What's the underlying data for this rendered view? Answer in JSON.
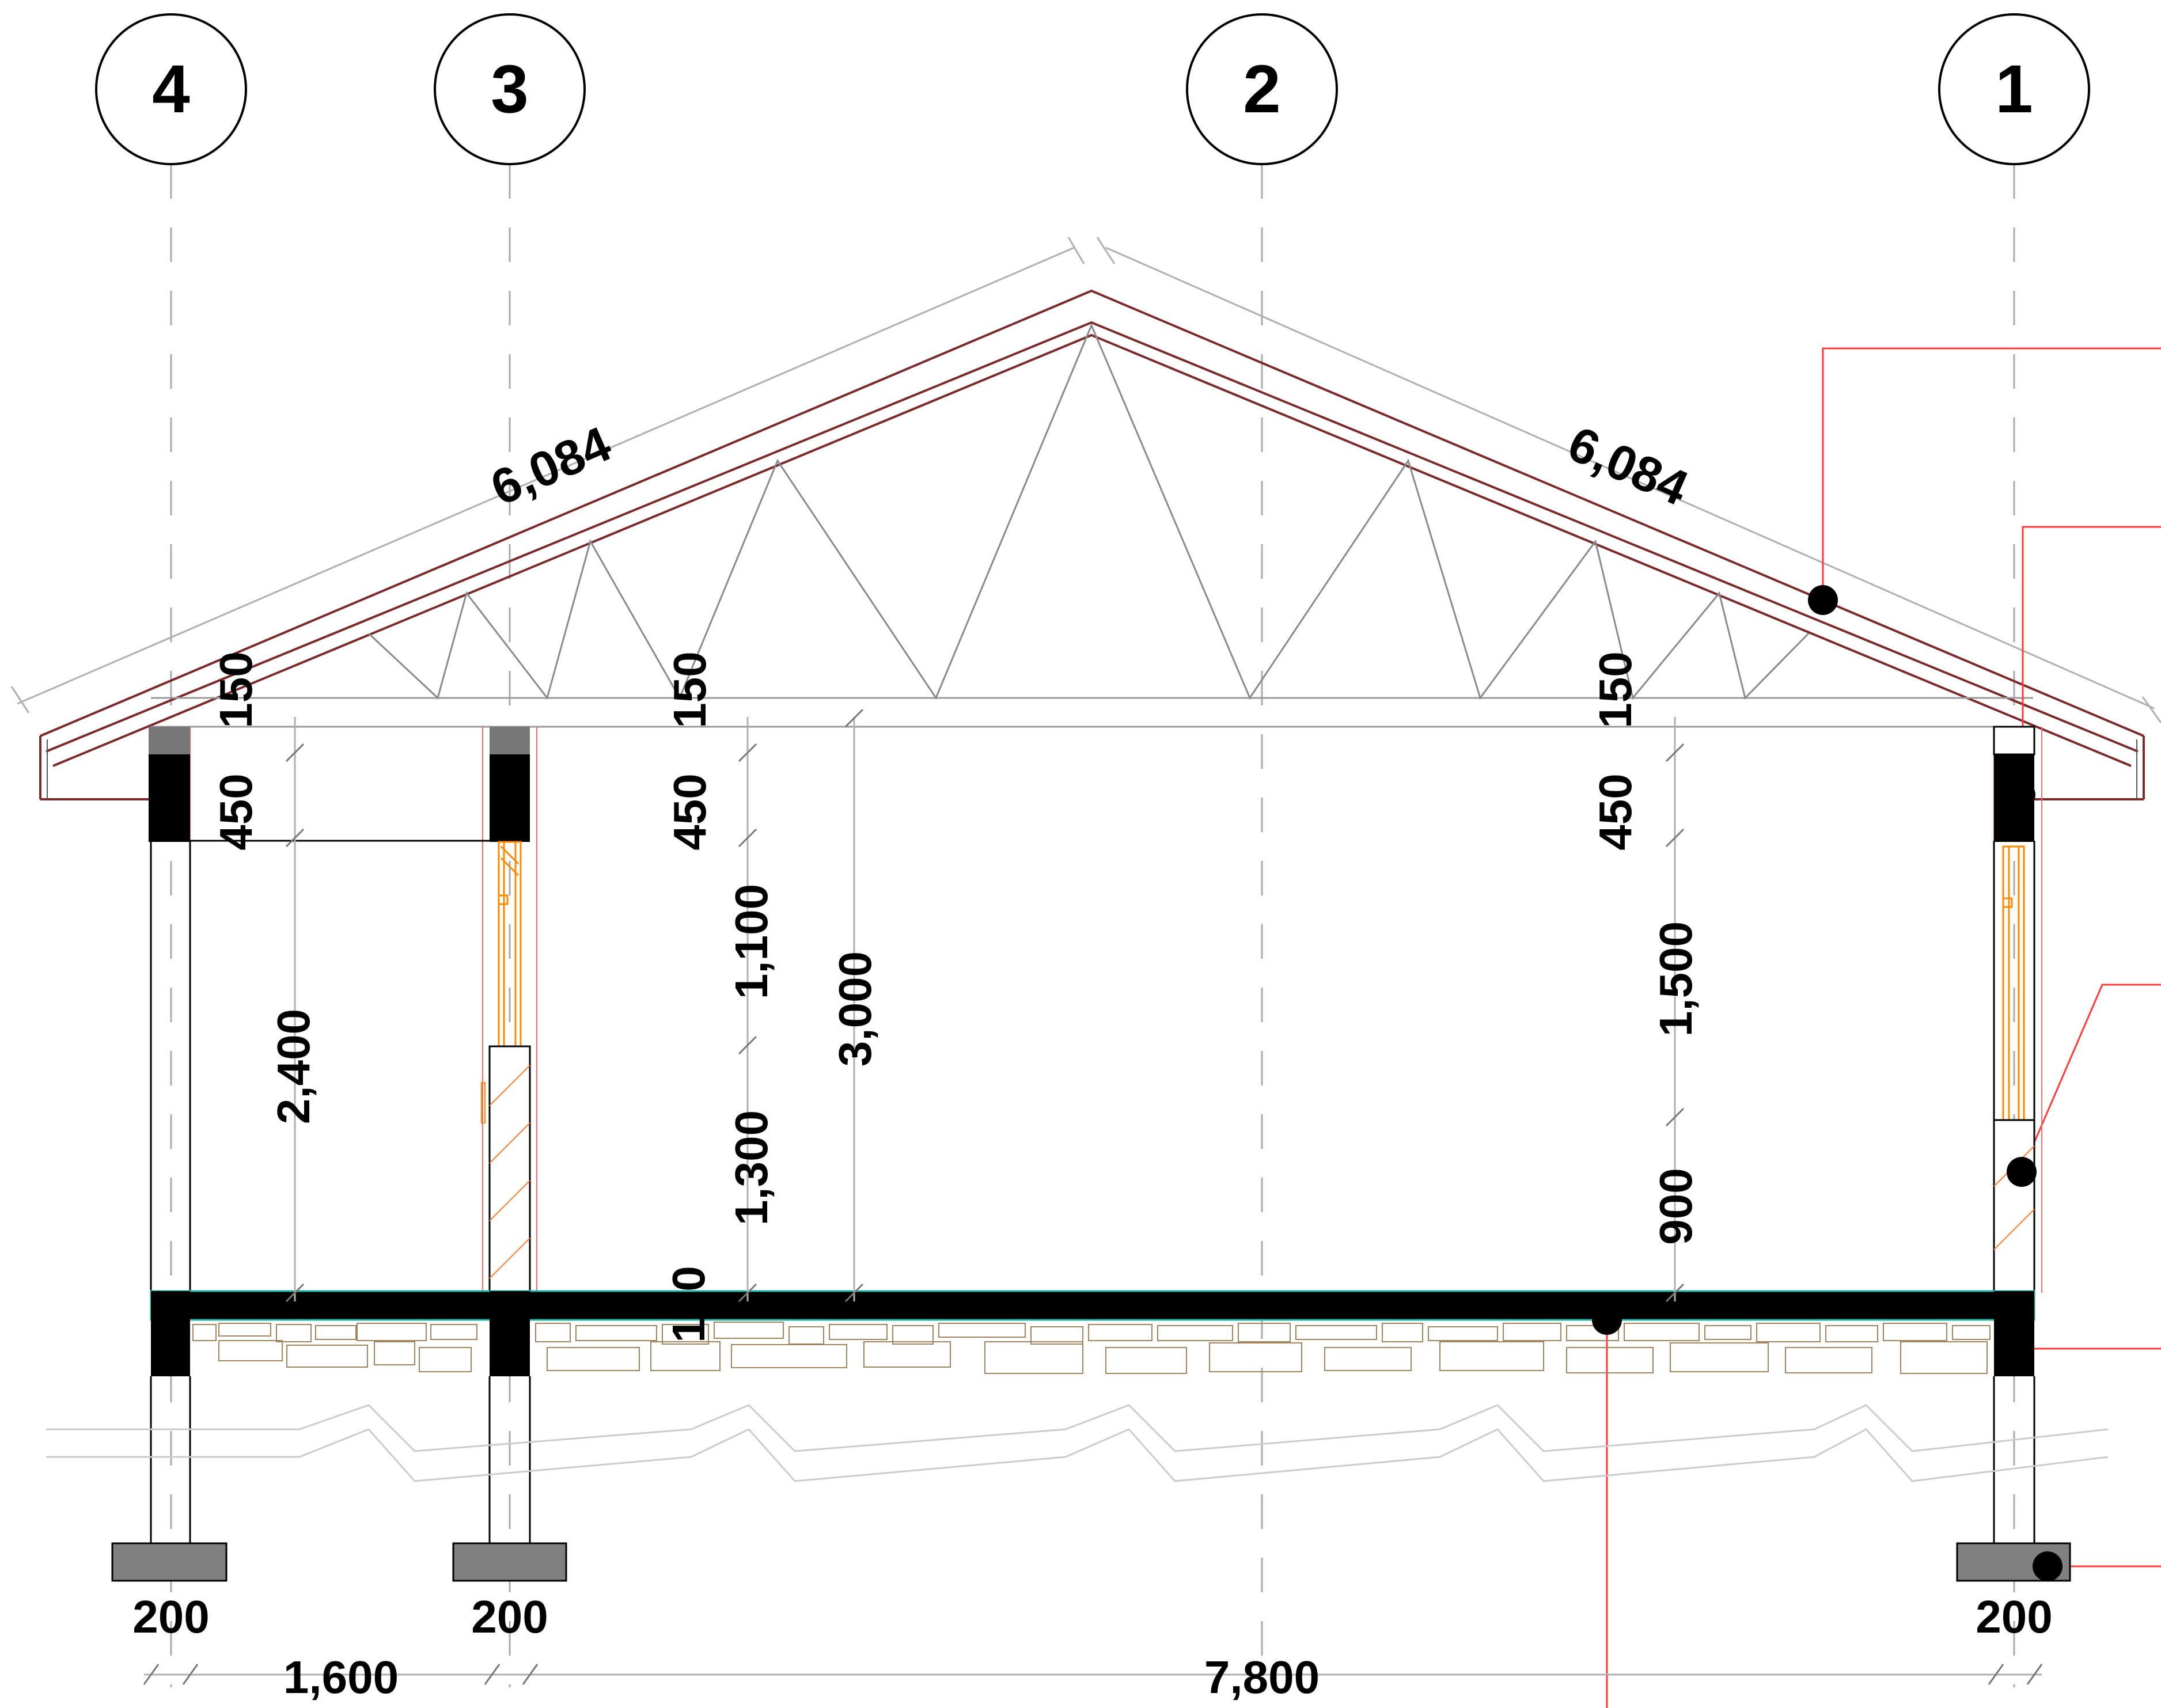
{
  "grid_axes": [
    {
      "id": "4",
      "label": "4"
    },
    {
      "id": "3",
      "label": "3"
    },
    {
      "id": "2",
      "label": "2"
    },
    {
      "id": "1",
      "label": "1"
    }
  ],
  "dimensions": {
    "rafter_left": "6,084",
    "rafter_right": "6,084",
    "eave_left_top": "150",
    "eave_left_beam": "450",
    "wall_left_height": "2,400",
    "eave_mid_top": "150",
    "eave_mid_beam": "450",
    "window_mid_height": "1,100",
    "sill_mid_height": "1,300",
    "floor_mid": "100",
    "room_height": "3,000",
    "eave_right_top": "150",
    "eave_right_beam": "450",
    "window_right_height": "1,500",
    "sill_right_height": "900",
    "wall_thickness_4": "200",
    "wall_thickness_3": "200",
    "wall_thickness_1": "200",
    "span_4_3": "1,600",
    "span_3_1": "7,800"
  },
  "colors": {
    "line": "#000000",
    "thin": "#b0b0b0",
    "roof": "#7a2a2a",
    "leader": "#ff3b3b",
    "window": "#ff8a00",
    "hatch": "#ff7b30",
    "paving": "#a5835f",
    "slab_edge": "#1fb5a5",
    "footing": "#808080",
    "beam_cap": "#777777"
  }
}
